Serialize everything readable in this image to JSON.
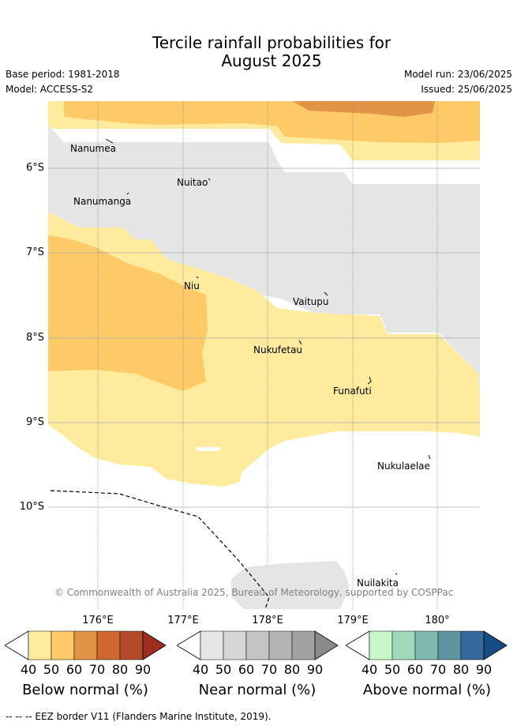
{
  "title": {
    "line1": "Tercile rainfall probabilities for",
    "line2": "August 2025"
  },
  "meta": {
    "base_period": "Base period: 1981-2018",
    "model": "Model: ACCESS-S2",
    "model_run": "Model run: 23/06/2025",
    "issued": "Issued: 25/06/2025"
  },
  "map": {
    "lat_labels": [
      "6°S",
      "7°S",
      "8°S",
      "9°S",
      "10°S"
    ],
    "lon_labels": [
      "176°E",
      "177°E",
      "178°E",
      "179°E",
      "180°"
    ],
    "islands": [
      "Nanumea",
      "Nuitao",
      "Nanumanga",
      "Niu",
      "Vaitupu",
      "Nukufetau",
      "Funafuti",
      "Nukulaelae",
      "Nuilakita"
    ],
    "copyright": "© Commonwealth of Australia 2025, Bureau of Meteorology, supported by COSPPac",
    "colors": {
      "below_40": "#feeb9e",
      "below_50": "#fec967",
      "below_60": "#e29446",
      "near_40": "#e5e5e5",
      "grid": "#888888"
    }
  },
  "colorbars": [
    {
      "title": "Below normal (%)",
      "ticks": [
        "40",
        "50",
        "60",
        "70",
        "80",
        "90"
      ],
      "colors": [
        "#feeb9e",
        "#fec967",
        "#e29446",
        "#d06630",
        "#b34a2a",
        "#9e2e20"
      ]
    },
    {
      "title": "Near normal (%)",
      "ticks": [
        "40",
        "50",
        "60",
        "70",
        "80",
        "90"
      ],
      "colors": [
        "#e5e5e5",
        "#d6d6d6",
        "#c4c4c4",
        "#b4b4b4",
        "#a2a2a2",
        "#8a8a8a"
      ]
    },
    {
      "title": "Above normal (%)",
      "ticks": [
        "40",
        "50",
        "60",
        "70",
        "80",
        "90"
      ],
      "colors": [
        "#c8f8c8",
        "#a0d8bc",
        "#80b8b0",
        "#5c94a0",
        "#36689c",
        "#174c82"
      ]
    }
  ],
  "footer": "-- -- -- EEZ border V11 (Flanders Marine Institute, 2019)."
}
